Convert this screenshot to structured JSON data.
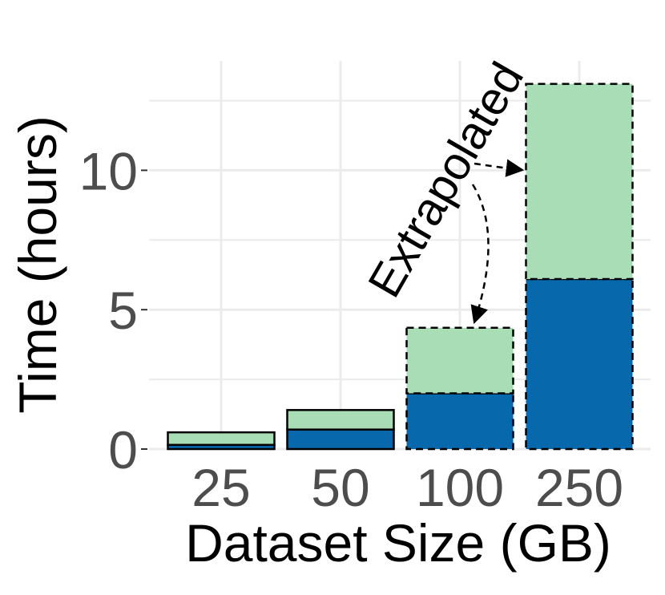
{
  "chart_data": {
    "type": "bar",
    "stacked": true,
    "xlabel": "Dataset Size (GB)",
    "ylabel": "Time (hours)",
    "categories": [
      "25",
      "50",
      "100",
      "250"
    ],
    "ylim": [
      0,
      12.6
    ],
    "yticks": [
      0,
      5,
      10
    ],
    "grid": true,
    "series": [
      {
        "values": [
          0.15,
          0.7,
          2.0,
          6.1
        ],
        "color": "#0868ac"
      },
      {
        "values": [
          0.45,
          0.7,
          2.35,
          7.0
        ],
        "color": "#a8ddb5"
      }
    ],
    "extrapolated": [
      false,
      false,
      true,
      true
    ],
    "annotation": "Extrapolated"
  }
}
